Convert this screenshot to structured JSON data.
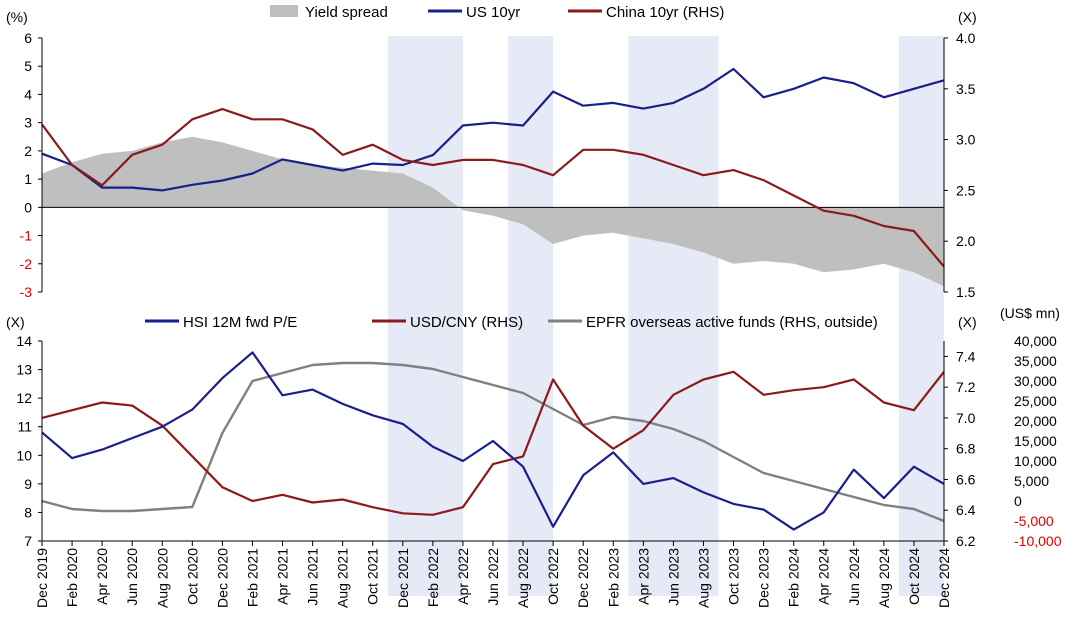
{
  "colors": {
    "spread": "#bfbfbf",
    "us10": "#1a1f8c",
    "china10": "#8b1a1a",
    "hsi_pe": "#1a1f8c",
    "usdcny": "#8b1a1a",
    "epfr": "#808080",
    "shade": "#e6eaf6",
    "negative_tick": "#e00000",
    "axis": "#000000"
  },
  "x_axis": {
    "tick_labels": [
      "Dec 2019",
      "Feb 2020",
      "Apr 2020",
      "Jun 2020",
      "Aug 2020",
      "Oct 2020",
      "Dec 2020",
      "Feb 2021",
      "Apr 2021",
      "Jun 2021",
      "Aug 2021",
      "Oct 2021",
      "Dec 2021",
      "Feb 2022",
      "Apr 2022",
      "Jun 2022",
      "Aug 2022",
      "Oct 2022",
      "Dec 2022",
      "Feb 2023",
      "Apr 2023",
      "Jun 2023",
      "Aug 2023",
      "Oct 2023",
      "Dec 2023",
      "Feb 2024",
      "Apr 2024",
      "Jun 2024",
      "Aug 2024",
      "Oct 2024",
      "Dec 2024"
    ]
  },
  "shaded_periods": [
    {
      "start": "2021-11",
      "end": "2022-04"
    },
    {
      "start": "2022-07",
      "end": "2022-10"
    },
    {
      "start": "2023-03",
      "end": "2023-09"
    },
    {
      "start": "2024-09",
      "end": "2024-12"
    }
  ],
  "chart_data": [
    {
      "type": "line",
      "left_unit": "(%)",
      "right_unit": "(X)",
      "left_ticks": [
        "6",
        "5",
        "4",
        "3",
        "2",
        "1",
        "0",
        "-1",
        "-2",
        "-3"
      ],
      "right_ticks": [
        "4.0",
        "3.5",
        "3.0",
        "2.5",
        "2.0",
        "1.5"
      ],
      "ylim": [
        -3,
        6
      ],
      "y2lim": [
        1.5,
        4.0
      ],
      "x": [
        "Dec 2019",
        "Feb 2020",
        "Apr 2020",
        "Jun 2020",
        "Aug 2020",
        "Oct 2020",
        "Dec 2020",
        "Feb 2021",
        "Apr 2021",
        "Jun 2021",
        "Aug 2021",
        "Oct 2021",
        "Dec 2021",
        "Feb 2022",
        "Apr 2022",
        "Jun 2022",
        "Aug 2022",
        "Oct 2022",
        "Dec 2022",
        "Feb 2023",
        "Apr 2023",
        "Jun 2023",
        "Aug 2023",
        "Oct 2023",
        "Dec 2023",
        "Feb 2024",
        "Apr 2024",
        "Jun 2024",
        "Aug 2024",
        "Oct 2024",
        "Dec 2024"
      ],
      "series": [
        {
          "name": "Yield spread",
          "type": "area",
          "axis": "left",
          "values": [
            1.2,
            1.6,
            1.9,
            2.0,
            2.3,
            2.5,
            2.3,
            2.0,
            1.7,
            1.5,
            1.4,
            1.3,
            1.2,
            0.7,
            -0.1,
            -0.3,
            -0.6,
            -1.3,
            -1.0,
            -0.9,
            -1.1,
            -1.3,
            -1.6,
            -2.0,
            -1.9,
            -2.0,
            -2.3,
            -2.2,
            -2.0,
            -2.3,
            -2.8
          ]
        },
        {
          "name": "US 10yr",
          "type": "line",
          "axis": "left",
          "values": [
            1.9,
            1.5,
            0.7,
            0.7,
            0.6,
            0.8,
            0.95,
            1.2,
            1.7,
            1.5,
            1.3,
            1.55,
            1.5,
            1.85,
            2.9,
            3.0,
            2.9,
            4.1,
            3.6,
            3.7,
            3.5,
            3.7,
            4.2,
            4.9,
            3.9,
            4.2,
            4.6,
            4.4,
            3.9,
            4.2,
            4.5
          ]
        },
        {
          "name": "China 10yr (RHS)",
          "type": "line",
          "axis": "right",
          "values": [
            3.15,
            2.75,
            2.55,
            2.85,
            2.95,
            3.2,
            3.3,
            3.2,
            3.2,
            3.1,
            2.85,
            2.95,
            2.8,
            2.75,
            2.8,
            2.8,
            2.75,
            2.65,
            2.9,
            2.9,
            2.85,
            2.75,
            2.65,
            2.7,
            2.6,
            2.45,
            2.3,
            2.25,
            2.15,
            2.1,
            1.75
          ]
        }
      ]
    },
    {
      "type": "line",
      "left_unit": "(X)",
      "right_unit": "(X)",
      "right2_unit": "(US$ mn)",
      "left_ticks": [
        "14",
        "13",
        "12",
        "11",
        "10",
        "9",
        "8",
        "7"
      ],
      "right_ticks": [
        "7.4",
        "7.2",
        "7.0",
        "6.8",
        "6.6",
        "6.4",
        "6.2"
      ],
      "right2_ticks": [
        "40,000",
        "35,000",
        "30,000",
        "25,000",
        "20,000",
        "15,000",
        "10,000",
        "5,000",
        "0",
        "-5,000",
        "-10,000"
      ],
      "ylim": [
        7,
        14
      ],
      "y2lim": [
        6.2,
        7.5
      ],
      "y3lim": [
        -10000,
        40000
      ],
      "x": [
        "Dec 2019",
        "Feb 2020",
        "Apr 2020",
        "Jun 2020",
        "Aug 2020",
        "Oct 2020",
        "Dec 2020",
        "Feb 2021",
        "Apr 2021",
        "Jun 2021",
        "Aug 2021",
        "Oct 2021",
        "Dec 2021",
        "Feb 2022",
        "Apr 2022",
        "Jun 2022",
        "Aug 2022",
        "Oct 2022",
        "Dec 2022",
        "Feb 2023",
        "Apr 2023",
        "Jun 2023",
        "Aug 2023",
        "Oct 2023",
        "Dec 2023",
        "Feb 2024",
        "Apr 2024",
        "Jun 2024",
        "Aug 2024",
        "Oct 2024",
        "Dec 2024"
      ],
      "series": [
        {
          "name": "HSI 12M fwd P/E",
          "type": "line",
          "axis": "left",
          "values": [
            10.8,
            9.9,
            10.2,
            10.6,
            11.0,
            11.6,
            12.7,
            13.6,
            12.1,
            12.3,
            11.8,
            11.4,
            11.1,
            10.3,
            9.8,
            10.5,
            9.6,
            7.5,
            9.3,
            10.1,
            9.0,
            9.2,
            8.7,
            8.3,
            8.1,
            7.4,
            8.0,
            9.5,
            8.5,
            9.6,
            9.0
          ]
        },
        {
          "name": "USD/CNY (RHS)",
          "type": "line",
          "axis": "right",
          "values": [
            7.0,
            7.05,
            7.1,
            7.08,
            6.95,
            6.75,
            6.55,
            6.46,
            6.5,
            6.45,
            6.47,
            6.42,
            6.38,
            6.37,
            6.42,
            6.7,
            6.75,
            7.25,
            6.95,
            6.8,
            6.92,
            7.15,
            7.25,
            7.3,
            7.15,
            7.18,
            7.2,
            7.25,
            7.1,
            7.05,
            7.3
          ]
        },
        {
          "name": "EPFR overseas active funds (RHS, outside)",
          "type": "line",
          "axis": "right2",
          "values": [
            0,
            -2000,
            -2500,
            -2500,
            -2000,
            -1500,
            17000,
            30000,
            32000,
            34000,
            34500,
            34500,
            34000,
            33000,
            31000,
            29000,
            27000,
            23000,
            19000,
            21000,
            20000,
            18000,
            15000,
            11000,
            7000,
            5000,
            3000,
            1000,
            -1000,
            -2000,
            -5000
          ]
        }
      ]
    }
  ]
}
